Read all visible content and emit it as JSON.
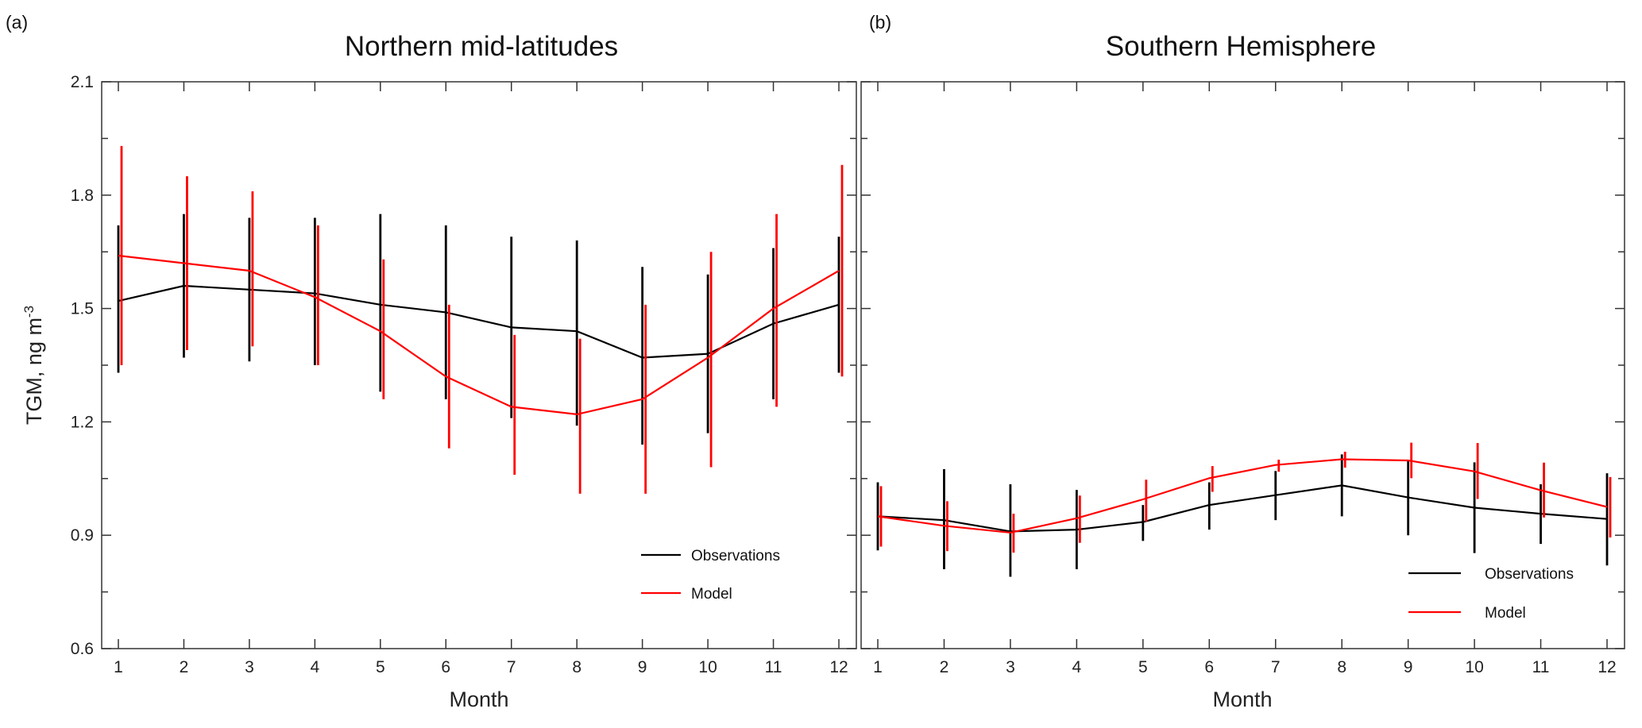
{
  "chart_data": [
    {
      "type": "line",
      "panel_label": "(a)",
      "title": "Northern mid-latitudes",
      "xlabel": "Month",
      "ylabel": "TGM, ng m",
      "ylabel_sup": "-3",
      "ylim": [
        0.6,
        2.1
      ],
      "yticks": [
        "0.6",
        "0.9",
        "1.2",
        "1.5",
        "1.8",
        "2.1"
      ],
      "x": [
        1,
        2,
        3,
        4,
        5,
        6,
        7,
        8,
        9,
        10,
        11,
        12
      ],
      "xticks": [
        "1",
        "2",
        "3",
        "4",
        "5",
        "6",
        "7",
        "8",
        "9",
        "10",
        "11",
        "12"
      ],
      "legend": [
        "Observations",
        "Model"
      ],
      "legend_position": "bottom-right",
      "series": [
        {
          "name": "Observations",
          "color": "#000000",
          "values": [
            1.52,
            1.56,
            1.55,
            1.54,
            1.51,
            1.49,
            1.45,
            1.44,
            1.37,
            1.38,
            1.46,
            1.51
          ],
          "err_low": [
            1.33,
            1.37,
            1.36,
            1.35,
            1.28,
            1.26,
            1.21,
            1.19,
            1.14,
            1.17,
            1.26,
            1.33
          ],
          "err_high": [
            1.72,
            1.75,
            1.74,
            1.74,
            1.75,
            1.72,
            1.69,
            1.68,
            1.61,
            1.59,
            1.66,
            1.69
          ]
        },
        {
          "name": "Model",
          "color": "#ff0000",
          "values": [
            1.64,
            1.62,
            1.6,
            1.53,
            1.44,
            1.32,
            1.24,
            1.22,
            1.26,
            1.37,
            1.5,
            1.6
          ],
          "err_low": [
            1.35,
            1.39,
            1.4,
            1.35,
            1.26,
            1.13,
            1.06,
            1.01,
            1.01,
            1.08,
            1.24,
            1.32
          ],
          "err_high": [
            1.93,
            1.85,
            1.81,
            1.72,
            1.63,
            1.51,
            1.43,
            1.42,
            1.51,
            1.65,
            1.75,
            1.88
          ]
        }
      ]
    },
    {
      "type": "line",
      "panel_label": "(b)",
      "title": "Southern Hemisphere",
      "xlabel": "Month",
      "ylim": [
        0.6,
        2.1
      ],
      "x": [
        1,
        2,
        3,
        4,
        5,
        6,
        7,
        8,
        9,
        10,
        11,
        12
      ],
      "xticks": [
        "1",
        "2",
        "3",
        "4",
        "5",
        "6",
        "7",
        "8",
        "9",
        "10",
        "11",
        "12"
      ],
      "legend": [
        "Observations",
        "Model"
      ],
      "legend_position": "bottom-right",
      "series": [
        {
          "name": "Observations",
          "color": "#000000",
          "values": [
            0.95,
            0.94,
            0.91,
            0.915,
            0.935,
            0.98,
            1.006,
            1.032,
            1.0,
            0.973,
            0.957,
            0.943
          ],
          "err_low": [
            0.86,
            0.81,
            0.79,
            0.81,
            0.885,
            0.915,
            0.94,
            0.95,
            0.9,
            0.853,
            0.877,
            0.82
          ],
          "err_high": [
            1.04,
            1.075,
            1.035,
            1.02,
            0.98,
            1.04,
            1.07,
            1.114,
            1.1,
            1.093,
            1.035,
            1.064
          ]
        },
        {
          "name": "Model",
          "color": "#ff0000",
          "values": [
            0.95,
            0.925,
            0.907,
            0.945,
            0.995,
            1.051,
            1.086,
            1.101,
            1.098,
            1.069,
            1.019,
            0.975
          ],
          "err_low": [
            0.87,
            0.858,
            0.854,
            0.88,
            0.936,
            1.015,
            1.068,
            1.079,
            1.051,
            0.996,
            0.947,
            0.894
          ],
          "err_high": [
            1.03,
            0.99,
            0.957,
            1.005,
            1.047,
            1.083,
            1.1,
            1.121,
            1.145,
            1.144,
            1.092,
            1.054
          ]
        }
      ]
    }
  ]
}
